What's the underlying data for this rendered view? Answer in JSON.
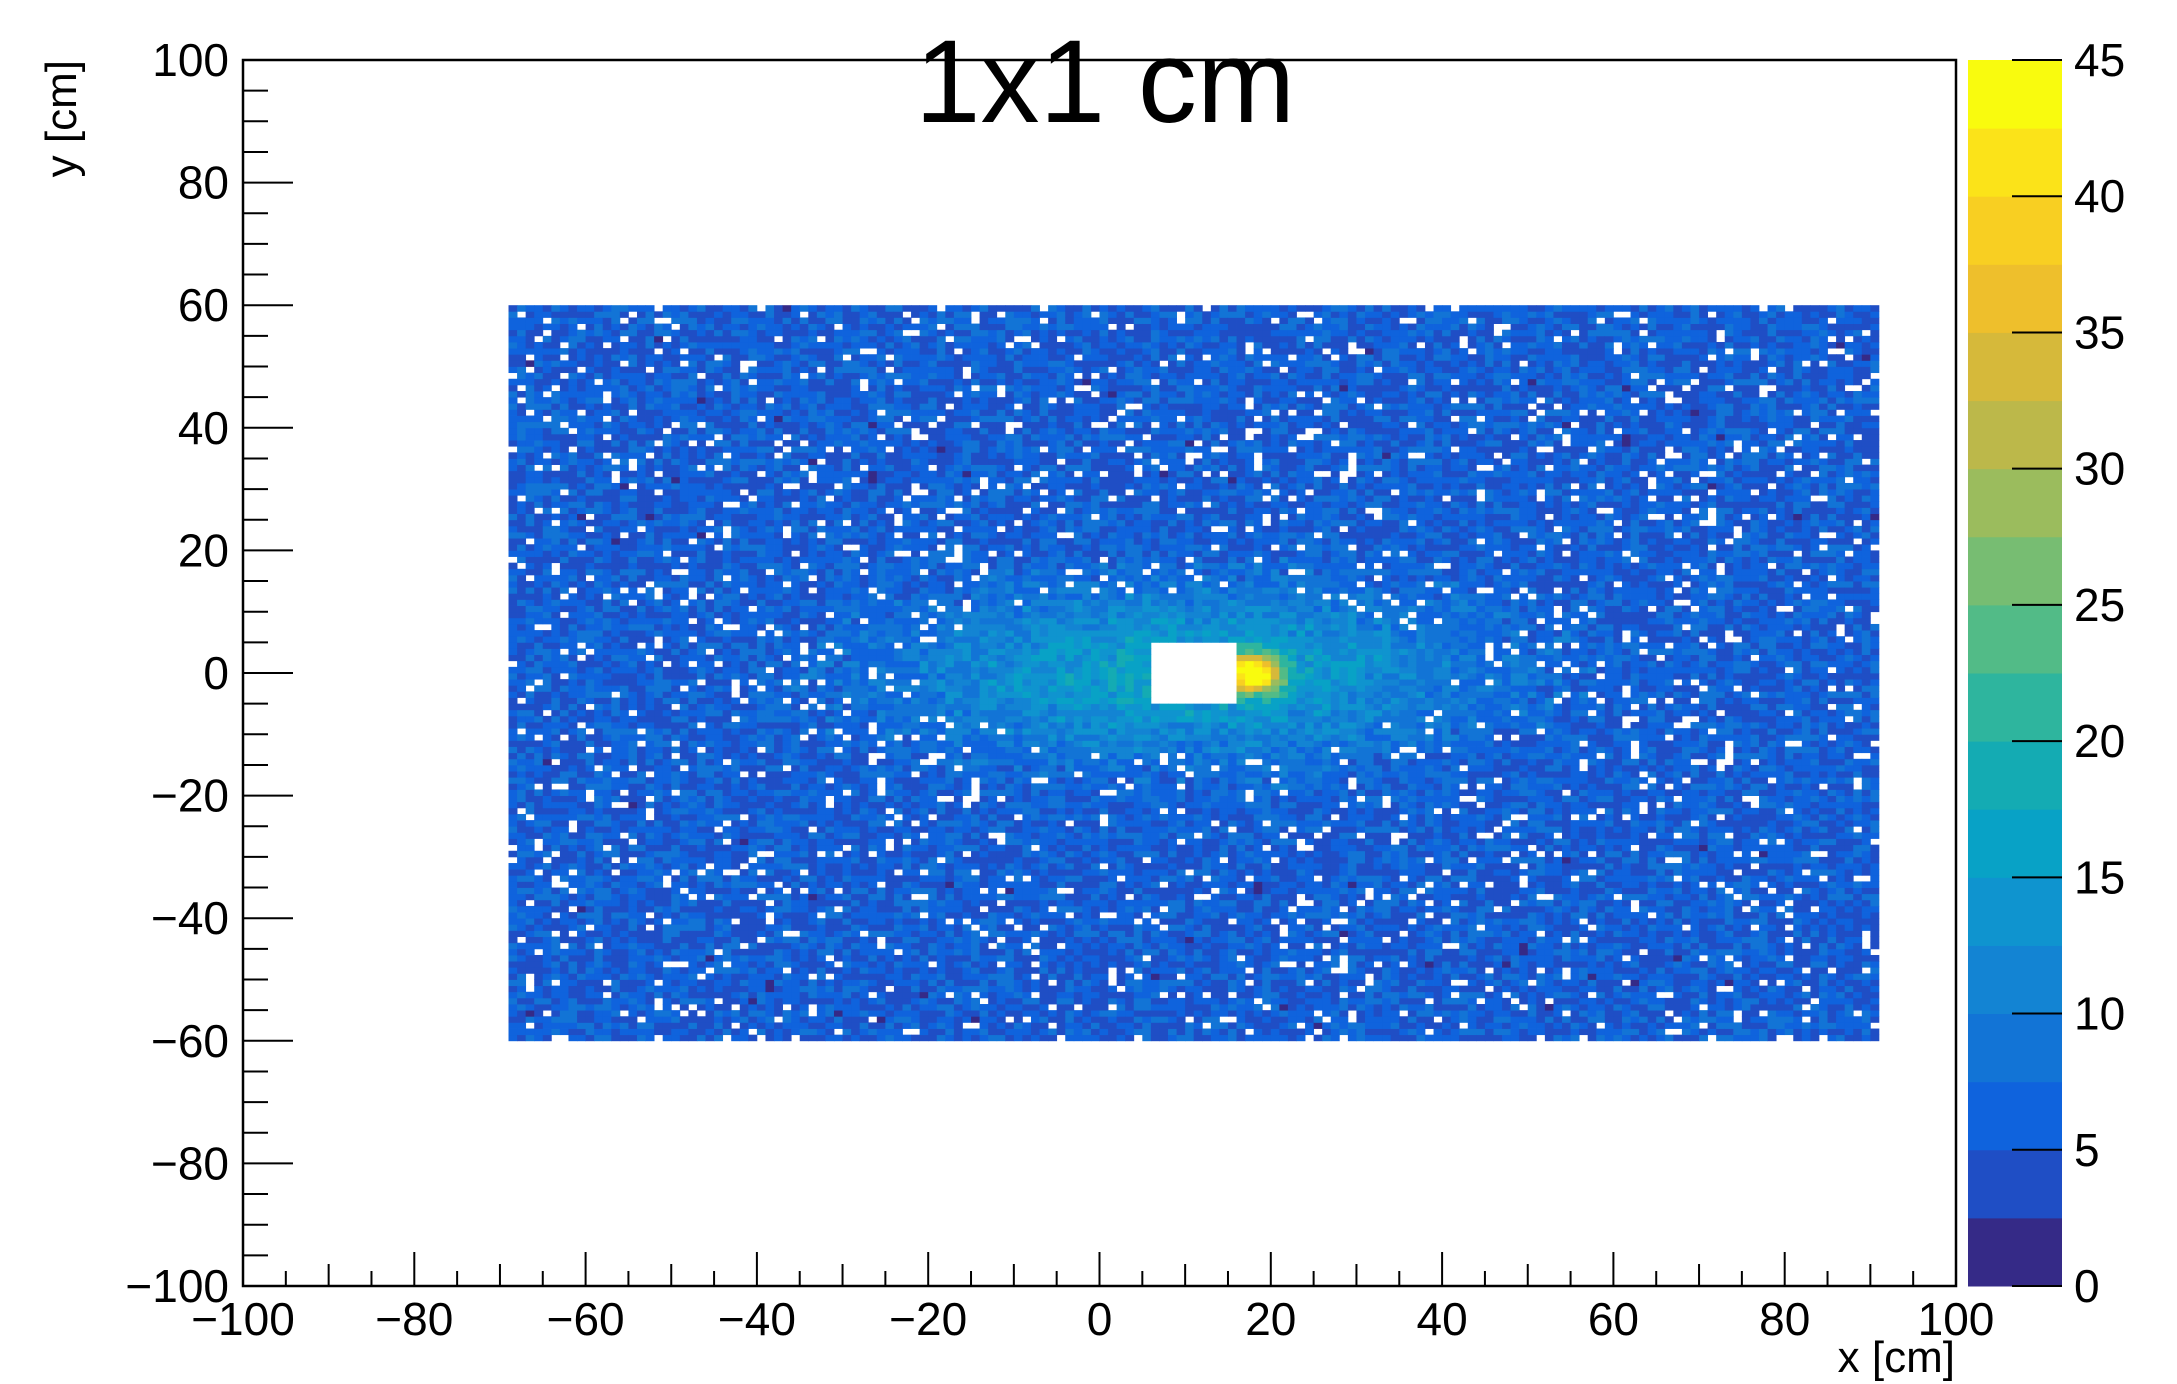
{
  "chart_data": {
    "type": "heatmap",
    "title": "1x1 cm",
    "xlabel": "x [cm]",
    "ylabel": "y [cm]",
    "zlabel": "",
    "xlim": [
      -100,
      100
    ],
    "ylim": [
      -100,
      100
    ],
    "zlim": [
      0,
      45
    ],
    "x_ticks": [
      "−100",
      "−80",
      "−60",
      "−40",
      "−20",
      "0",
      "20",
      "40",
      "60",
      "80",
      "100"
    ],
    "x_tick_values": [
      -100,
      -80,
      -60,
      -40,
      -20,
      0,
      20,
      40,
      60,
      80,
      100
    ],
    "y_ticks": [
      "−100",
      "−80",
      "−60",
      "−40",
      "−20",
      "0",
      "20",
      "40",
      "60",
      "80",
      "100"
    ],
    "y_tick_values": [
      -100,
      -80,
      -60,
      -40,
      -20,
      0,
      20,
      40,
      60,
      80,
      100
    ],
    "z_ticks": [
      "0",
      "5",
      "10",
      "15",
      "20",
      "25",
      "30",
      "35",
      "40",
      "45"
    ],
    "z_tick_values": [
      0,
      5,
      10,
      15,
      20,
      25,
      30,
      35,
      40,
      45
    ],
    "data_region": {
      "x": [
        -69,
        91
      ],
      "y": [
        -60,
        60
      ],
      "bin_size": 1
    },
    "empty_region": {
      "x": [
        6,
        16
      ],
      "y": [
        -5,
        5
      ]
    },
    "background_mean": 7,
    "hotspot": {
      "x": 18,
      "y": 0,
      "peak": 45
    },
    "colormap": [
      "#352a87",
      "#1f4ec5",
      "#0f63dd",
      "#1274d6",
      "#1384d3",
      "#0f94cf",
      "#08a2c6",
      "#14abb3",
      "#2eb59e",
      "#52bb87",
      "#77bd72",
      "#9bbc5d",
      "#bcb84a",
      "#d6b93a",
      "#eebf2c",
      "#f8cf22",
      "#fbe319",
      "#f9fb0e"
    ]
  }
}
